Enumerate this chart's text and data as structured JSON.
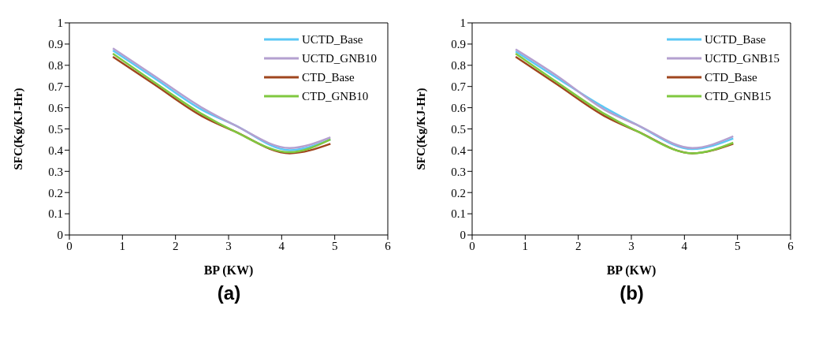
{
  "chart_data": [
    {
      "type": "line",
      "title": "(a)",
      "xlabel": "BP (KW)",
      "ylabel": "SFC(Kg/KJ-Hr)",
      "x": [
        0.82,
        1.6,
        2.5,
        3.1,
        4.15,
        4.92
      ],
      "series": [
        {
          "name": "UCTD_Base",
          "color": "#5bc8f5",
          "values": [
            0.87,
            0.74,
            0.59,
            0.52,
            0.4,
            0.45
          ]
        },
        {
          "name": "UCTD_GNB10",
          "color": "#b4a0d0",
          "values": [
            0.88,
            0.75,
            0.6,
            0.52,
            0.41,
            0.46
          ]
        },
        {
          "name": "CTD_Base",
          "color": "#a0461e",
          "values": [
            0.84,
            0.71,
            0.56,
            0.49,
            0.385,
            0.43
          ]
        },
        {
          "name": "CTD_GNB10",
          "color": "#80c840",
          "values": [
            0.855,
            0.72,
            0.57,
            0.49,
            0.39,
            0.45
          ]
        }
      ],
      "xlim": [
        0,
        6
      ],
      "xticks": [
        0,
        1,
        2,
        3,
        4,
        5,
        6
      ],
      "ylim": [
        0,
        1
      ],
      "yticks": [
        0,
        0.1,
        0.2,
        0.3,
        0.4,
        0.5,
        0.6,
        0.7,
        0.8,
        0.9,
        1
      ],
      "grid": false,
      "legend": "top right",
      "marker": "none",
      "line_style": "solid"
    },
    {
      "type": "line",
      "title": "(b)",
      "xlabel": "BP (KW)",
      "ylabel": "SFC(Kg/KJ-Hr)",
      "x": [
        0.82,
        1.6,
        2.5,
        3.1,
        4.15,
        4.92
      ],
      "series": [
        {
          "name": "UCTD_Base",
          "color": "#5bc8f5",
          "values": [
            0.865,
            0.74,
            0.6,
            0.52,
            0.405,
            0.455
          ]
        },
        {
          "name": "UCTD_GNB15",
          "color": "#b4a0d0",
          "values": [
            0.875,
            0.75,
            0.59,
            0.52,
            0.41,
            0.465
          ]
        },
        {
          "name": "CTD_Base",
          "color": "#a0461e",
          "values": [
            0.84,
            0.71,
            0.56,
            0.49,
            0.385,
            0.43
          ]
        },
        {
          "name": "CTD_GNB15",
          "color": "#80c840",
          "values": [
            0.855,
            0.72,
            0.57,
            0.49,
            0.385,
            0.435
          ]
        }
      ],
      "xlim": [
        0,
        6
      ],
      "xticks": [
        0,
        1,
        2,
        3,
        4,
        5,
        6
      ],
      "ylim": [
        0,
        1
      ],
      "yticks": [
        0,
        0.1,
        0.2,
        0.3,
        0.4,
        0.5,
        0.6,
        0.7,
        0.8,
        0.9,
        1
      ],
      "grid": false,
      "legend": "top right",
      "marker": "none",
      "line_style": "solid"
    }
  ]
}
